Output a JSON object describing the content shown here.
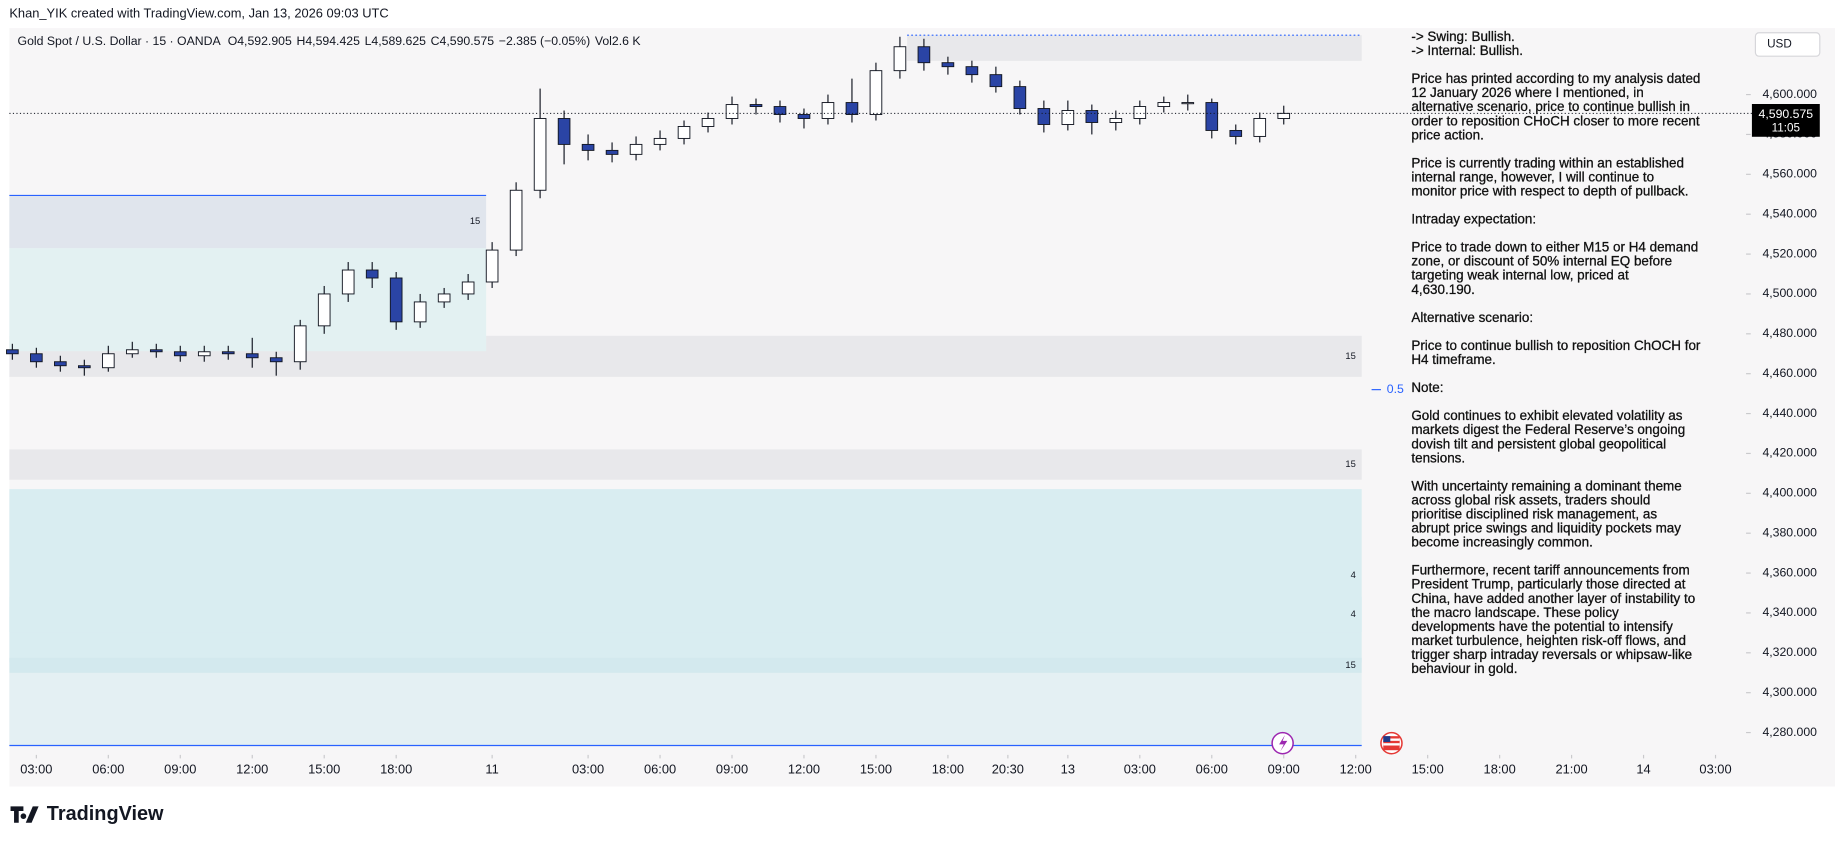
{
  "header": {
    "credit": "Khan_YIK created with TradingView.com, Jan 13, 2026 09:03 UTC"
  },
  "chart_data": {
    "type": "candlestick",
    "title": "Gold Spot / U.S. Dollar · 15 · OANDA",
    "legend_values": [
      "O4,592.905",
      "H4,594.425",
      "L4,589.625",
      "C4,590.575",
      "−2.385 (−0.05%)",
      "Vol2.6 K"
    ],
    "currency": "USD",
    "x": [
      -4,
      0,
      4,
      8,
      12,
      16,
      20,
      24,
      28,
      32,
      36,
      40,
      44,
      48,
      52,
      56,
      60,
      64,
      68,
      72,
      76,
      80,
      84,
      88,
      92,
      96,
      100,
      104,
      108,
      112,
      116,
      120,
      124,
      128,
      132,
      136,
      140,
      144,
      148,
      152,
      156,
      160,
      164,
      168,
      172,
      176,
      180,
      184,
      188,
      192,
      196,
      200,
      204,
      208
    ],
    "open": [
      4472,
      4470,
      4466,
      4464,
      4463,
      4470,
      4472,
      4471,
      4469,
      4471,
      4470,
      4468,
      4466,
      4484,
      4500,
      4512,
      4508,
      4486,
      4496,
      4500,
      4506,
      4522,
      4552,
      4588,
      4575,
      4572,
      4570,
      4575,
      4578,
      4584,
      4588,
      4595,
      4594,
      4590,
      4588,
      4596,
      4590,
      4612,
      4624,
      4616,
      4614,
      4610,
      4604,
      4593,
      4585,
      4592,
      4586,
      4588,
      4594,
      4596,
      4596,
      4582,
      4579,
      4588
    ],
    "high": [
      4475,
      4473,
      4469,
      4467,
      4474,
      4476,
      4475,
      4474,
      4474,
      4474,
      4478,
      4471,
      4487,
      4504,
      4516,
      4516,
      4511,
      4500,
      4503,
      4510,
      4526,
      4556,
      4603,
      4592,
      4580,
      4576,
      4579,
      4582,
      4587,
      4591,
      4599,
      4598,
      4597,
      4593,
      4600,
      4608,
      4616,
      4629,
      4628,
      4619,
      4617,
      4614,
      4607,
      4597,
      4597,
      4595,
      4592,
      4597,
      4599,
      4600,
      4598,
      4585,
      4591,
      4594.425
    ],
    "low": [
      4467,
      4463,
      4461,
      4459,
      4461,
      4468,
      4468,
      4466,
      4466,
      4467,
      4463,
      4459,
      4462,
      4480,
      4496,
      4503,
      4482,
      4483,
      4493,
      4497,
      4503,
      4519,
      4548,
      4565,
      4567,
      4566,
      4567,
      4572,
      4575,
      4581,
      4585,
      4590,
      4586,
      4583,
      4585,
      4586,
      4587,
      4608,
      4612,
      4610,
      4606,
      4601,
      4590,
      4581,
      4582,
      4580,
      4582,
      4585,
      4591,
      4592,
      4578,
      4575,
      4576,
      4585
    ],
    "close": [
      4470,
      4466,
      4464,
      4463,
      4470,
      4472,
      4471,
      4469,
      4471,
      4470,
      4468,
      4466,
      4484,
      4500,
      4512,
      4508,
      4486,
      4496,
      4500,
      4506,
      4522,
      4552,
      4588,
      4575,
      4572,
      4570,
      4575,
      4578,
      4584,
      4588,
      4595,
      4594,
      4590,
      4588,
      4596,
      4590,
      4612,
      4624,
      4616,
      4614,
      4610,
      4604,
      4593,
      4585,
      4592,
      4586,
      4588,
      4594,
      4596,
      4596,
      4582,
      4579,
      4588,
      4590.575
    ],
    "colors": {
      "up": "#ffffff",
      "down": "#2a44a5",
      "wick": "#131722"
    },
    "xlim": [
      -4.5,
      284.7
    ],
    "ylim": [
      4273.5,
      4631
    ],
    "xticks": [
      {
        "value": 0,
        "label": "03:00"
      },
      {
        "value": 12,
        "label": "06:00"
      },
      {
        "value": 24,
        "label": "09:00"
      },
      {
        "value": 36,
        "label": "12:00"
      },
      {
        "value": 48,
        "label": "15:00"
      },
      {
        "value": 60,
        "label": "18:00"
      },
      {
        "value": 76,
        "label": "11"
      },
      {
        "value": 92,
        "label": "03:00"
      },
      {
        "value": 104,
        "label": "06:00"
      },
      {
        "value": 116,
        "label": "09:00"
      },
      {
        "value": 128,
        "label": "12:00"
      },
      {
        "value": 140,
        "label": "15:00"
      },
      {
        "value": 152,
        "label": "18:00"
      },
      {
        "value": 162,
        "label": "20:30"
      },
      {
        "value": 172,
        "label": "13"
      },
      {
        "value": 184,
        "label": "03:00"
      },
      {
        "value": 196,
        "label": "06:00"
      },
      {
        "value": 208,
        "label": "09:00"
      },
      {
        "value": 220,
        "label": "12:00"
      },
      {
        "value": 232,
        "label": "15:00"
      },
      {
        "value": 244,
        "label": "18:00"
      },
      {
        "value": 256,
        "label": "21:00"
      },
      {
        "value": 268,
        "label": "14"
      },
      {
        "value": 280,
        "label": "03:00"
      }
    ],
    "yticks": [
      {
        "value": 4280,
        "label": "4,280.000"
      },
      {
        "value": 4300,
        "label": "4,300.000"
      },
      {
        "value": 4320,
        "label": "4,320.000"
      },
      {
        "value": 4340,
        "label": "4,340.000"
      },
      {
        "value": 4360,
        "label": "4,360.000"
      },
      {
        "value": 4380,
        "label": "4,380.000"
      },
      {
        "value": 4400,
        "label": "4,400.000"
      },
      {
        "value": 4420,
        "label": "4,420.000"
      },
      {
        "value": 4440,
        "label": "4,440.000"
      },
      {
        "value": 4460,
        "label": "4,460.000"
      },
      {
        "value": 4480,
        "label": "4,480.000"
      },
      {
        "value": 4500,
        "label": "4,500.000"
      },
      {
        "value": 4520,
        "label": "4,520.000"
      },
      {
        "value": 4540,
        "label": "4,540.000"
      },
      {
        "value": 4560,
        "label": "4,560.000"
      },
      {
        "value": 4580,
        "label": "4,580.000"
      },
      {
        "value": 4600,
        "label": "4,600.000"
      }
    ],
    "zones": [
      {
        "x": [
          -4.5,
          221
        ],
        "y": [
          4458.4,
          4479.0
        ],
        "color": "#e8e8eb",
        "label": "15"
      },
      {
        "x": [
          -4.5,
          75
        ],
        "y": [
          4471.3,
          4523.0
        ],
        "color": "#e3f1f2"
      },
      {
        "x": [
          -4.5,
          75
        ],
        "y": [
          4523.0,
          4549.4
        ],
        "color": "#e0e5ed",
        "label": "15"
      },
      {
        "x": [
          -4.5,
          221
        ],
        "y": [
          4406.8,
          4422.0
        ],
        "color": "#e8e8eb",
        "label": "15"
      },
      {
        "x": [
          -4.5,
          221
        ],
        "y": [
          4315.2,
          4402.1
        ],
        "color": "#d9edf1",
        "label": "4"
      },
      {
        "x": [
          -4.5,
          221
        ],
        "y": [
          4330.4,
          4348.1
        ],
        "color": "#d9edf1",
        "label": "4"
      },
      {
        "x": [
          -4.5,
          221
        ],
        "y": [
          4309.9,
          4317.5
        ],
        "color": "#d3e9ee",
        "label": "15"
      },
      {
        "x": [
          -4.5,
          221
        ],
        "y": [
          4273.5,
          4309.9
        ],
        "color": "#e4f0f3"
      },
      {
        "x": [
          145.2,
          221
        ],
        "y": [
          4616.9,
          4629.8
        ],
        "color": "#e8e8eb"
      }
    ],
    "lines": [
      {
        "x": [
          -4.5,
          75
        ],
        "y": 4549.4,
        "color": "#2962ff",
        "dashed": false
      },
      {
        "x": [
          -4.5,
          221
        ],
        "y": 4273.5,
        "color": "#2962ff",
        "dashed": false
      },
      {
        "x": [
          145.2,
          221
        ],
        "y": 4629.8,
        "color": "#2962ff",
        "dashed": true
      }
    ],
    "level": {
      "value": 4452.0,
      "label": "0.5",
      "color": "#2962ff"
    },
    "last_price": {
      "value": 4590.575,
      "label": "4,590.575",
      "countdown": "11:05"
    }
  },
  "notes": {
    "paragraphs": [
      [
        "-> Swing: Bullish.",
        "-> Internal: Bullish."
      ],
      [
        "Price has printed according to my analysis dated",
        "12 January 2026 where I mentioned, in",
        "alternative scenario, price to continue bullish in",
        "order to reposition CHoCH closer to more recent",
        "price action."
      ],
      [
        "Price is currently trading within an established",
        "internal range, however, I will continue to",
        "monitor price with respect to depth of pullback."
      ],
      [
        "Intraday expectation:"
      ],
      [
        "Price to trade down to either M15 or H4 demand",
        "zone, or discount of 50% internal EQ before",
        "targeting weak internal low, priced at",
        "4,630.190."
      ],
      [
        "Alternative scenario:"
      ],
      [
        "Price to continue bullish to reposition ChOCH for",
        "H4 timeframe."
      ],
      [
        "Note:"
      ],
      [
        "Gold continues to exhibit elevated volatility as",
        "markets digest the Federal Reserve’s ongoing",
        "dovish tilt and persistent global geopolitical",
        "tensions."
      ],
      [
        "With uncertainty remaining a dominant theme",
        "across global risk assets, traders should",
        "prioritise disciplined risk management, as",
        "abrupt price swings and liquidity pockets may",
        "become increasingly common."
      ],
      [
        "Furthermore, recent tariff announcements from",
        "President Trump, particularly those directed at",
        "China, have added another layer of instability to",
        "the macro landscape. These policy",
        "developments have the potential to intensify",
        "market turbulence, heighten risk-off flows, and",
        "trigger sharp intraday reversals or whipsaw-like",
        "behaviour in gold."
      ]
    ]
  },
  "footer": {
    "brand": "TradingView"
  }
}
